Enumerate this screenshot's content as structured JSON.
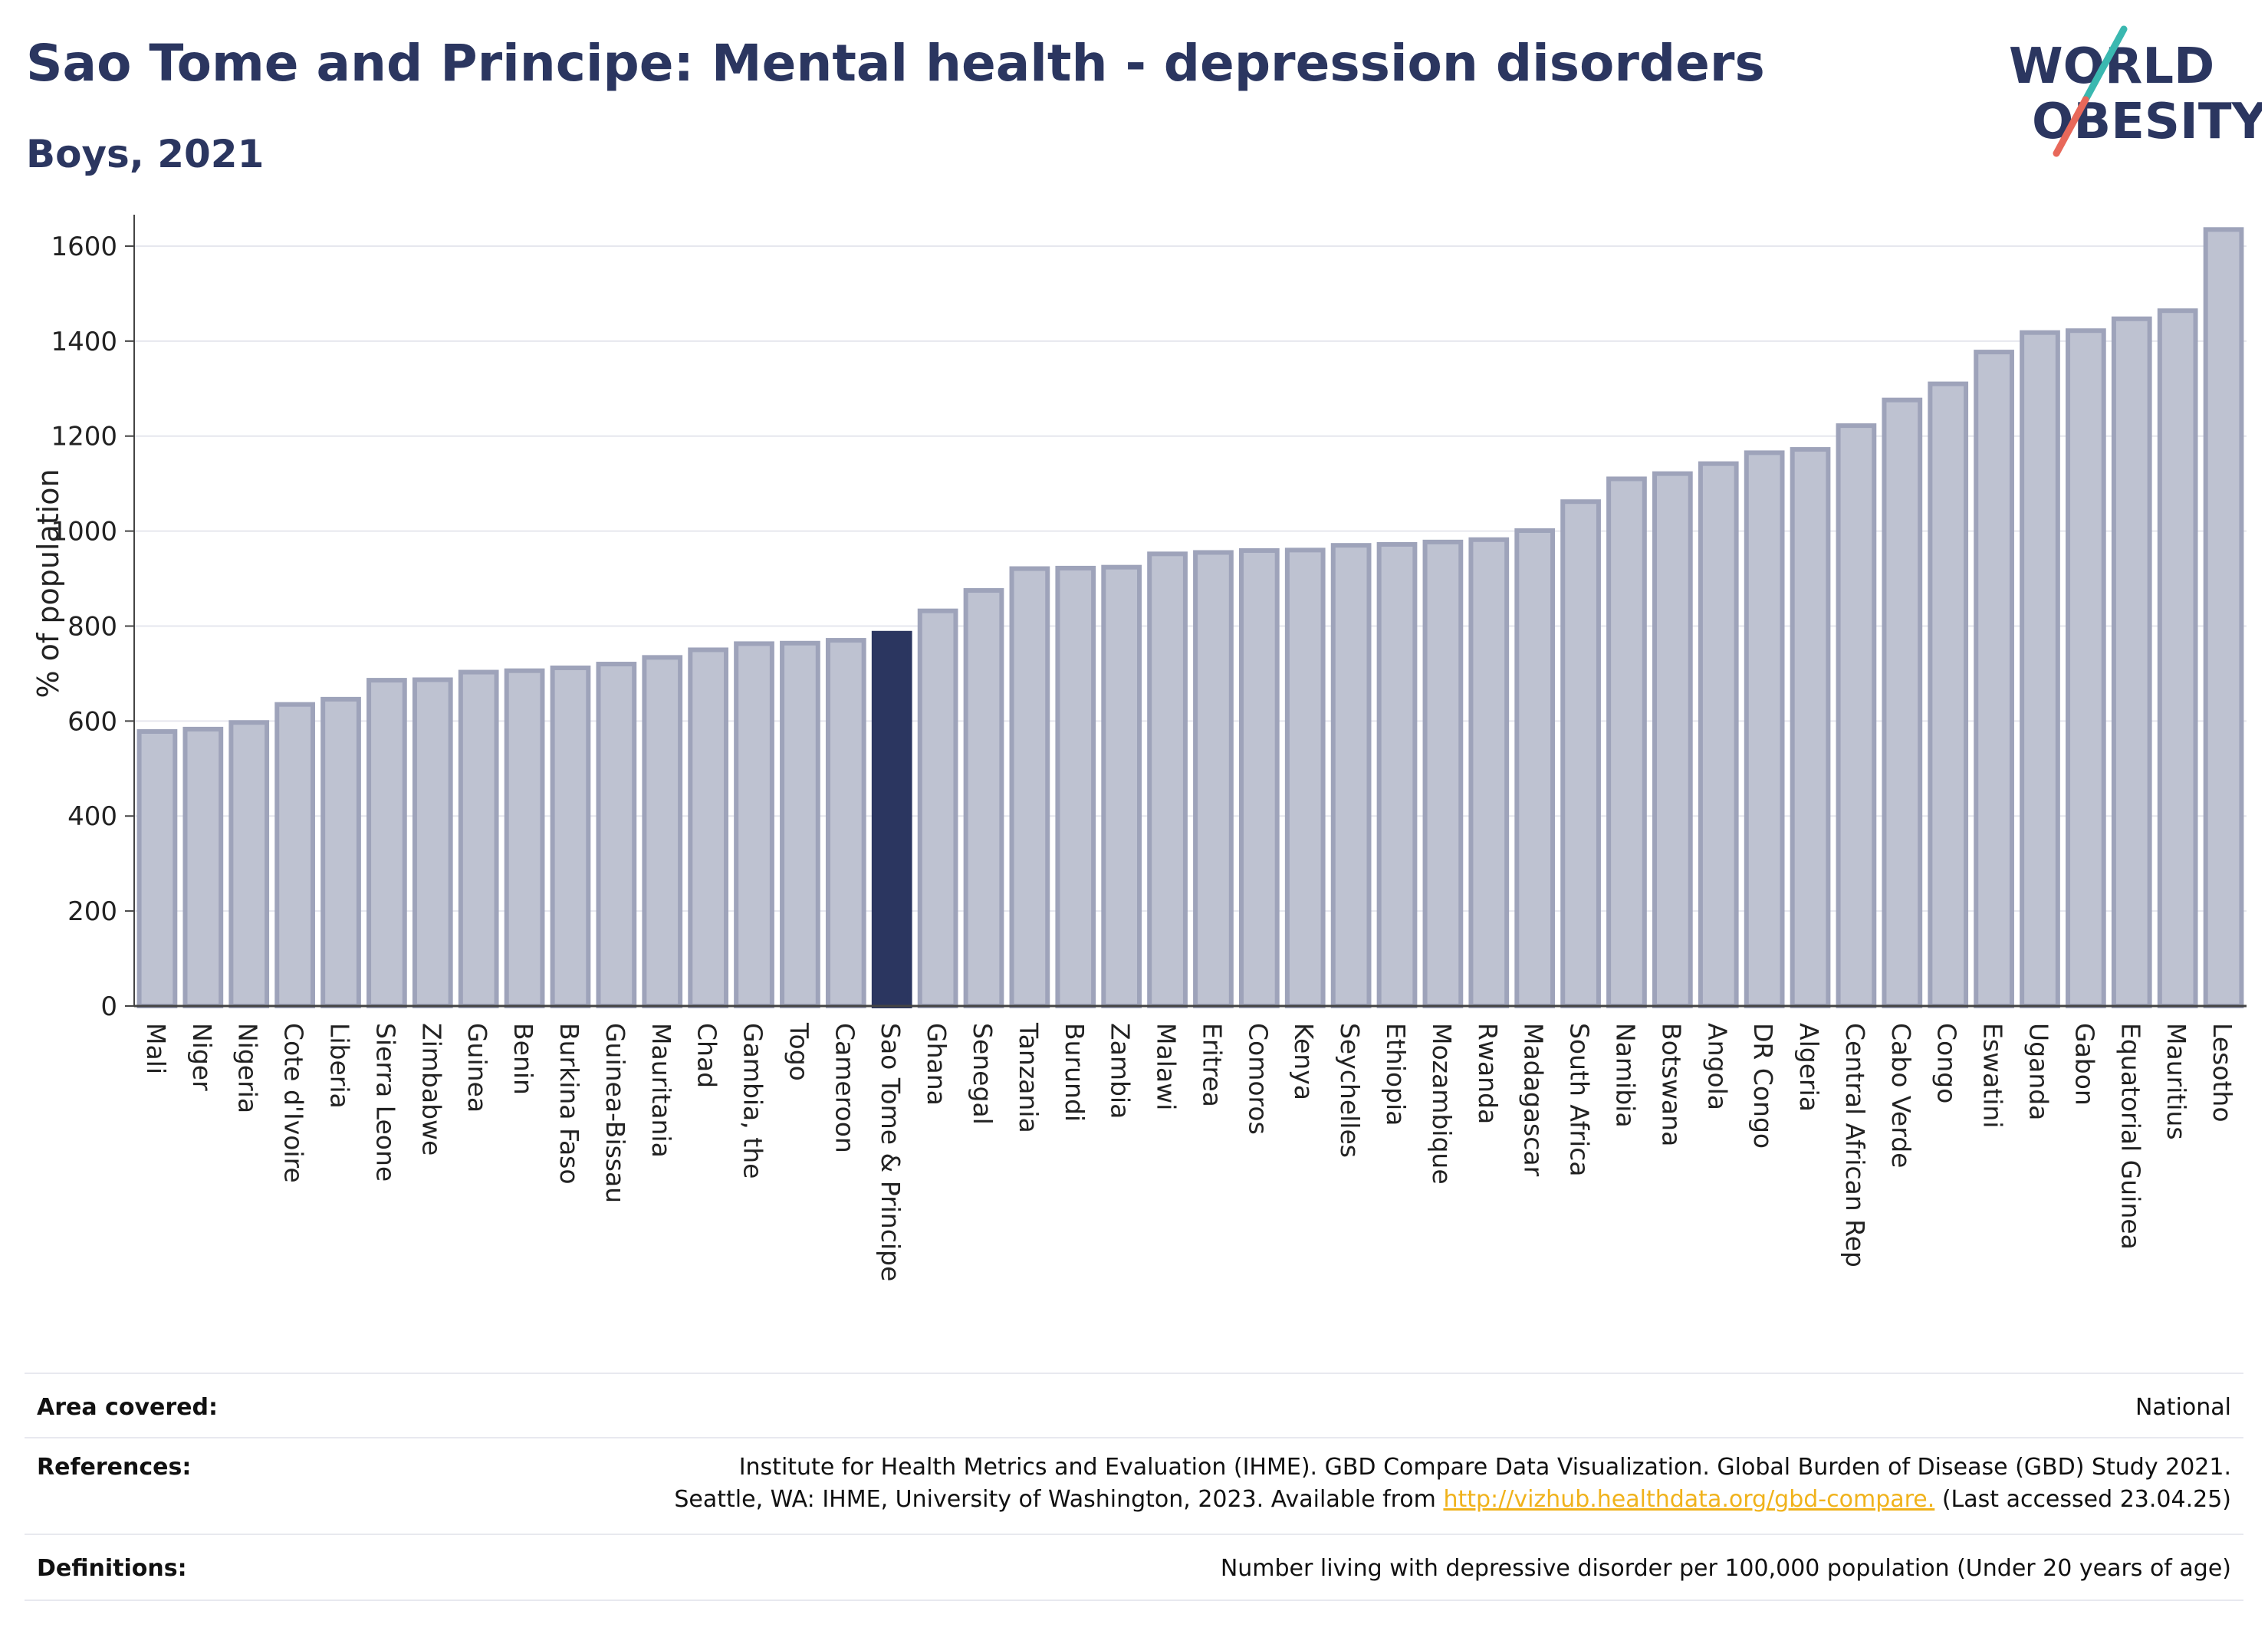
{
  "header": {
    "title": "Sao Tome and Principe: Mental health - depression disorders",
    "subtitle": "Boys, 2021"
  },
  "logo": {
    "line1": "WORLD",
    "line2": "OBESITY",
    "colors": {
      "text": "#2b3660",
      "slash_top": "#3ab8b0",
      "slash_bottom": "#e8685a"
    }
  },
  "chart_data": {
    "type": "bar",
    "ylabel": "% of population",
    "xlabel": "",
    "ylim": [
      0,
      1650
    ],
    "yticks": [
      0,
      200,
      400,
      600,
      800,
      1000,
      1200,
      1400,
      1600
    ],
    "grid": true,
    "highlight": "Sao Tome & Principe",
    "colors": {
      "bar": "#bec2d1",
      "bar_edge": "#9ea3ba",
      "highlight": "#2b3660"
    },
    "categories": [
      "Mali",
      "Niger",
      "Nigeria",
      "Cote d'Ivoire",
      "Liberia",
      "Sierra Leone",
      "Zimbabwe",
      "Guinea",
      "Benin",
      "Burkina Faso",
      "Guinea-Bissau",
      "Mauritania",
      "Chad",
      "Gambia, the",
      "Togo",
      "Cameroon",
      "Sao Tome & Principe",
      "Ghana",
      "Senegal",
      "Tanzania",
      "Burundi",
      "Zambia",
      "Malawi",
      "Eritrea",
      "Comoros",
      "Kenya",
      "Seychelles",
      "Ethiopia",
      "Mozambique",
      "Rwanda",
      "Madagascar",
      "South Africa",
      "Namibia",
      "Botswana",
      "Angola",
      "DR Congo",
      "Algeria",
      "Central African Rep",
      "Cabo Verde",
      "Congo",
      "Eswatini",
      "Uganda",
      "Gabon",
      "Equatorial Guinea",
      "Mauritius",
      "Lesotho"
    ],
    "values": [
      578,
      583,
      597,
      635,
      646,
      686,
      687,
      703,
      706,
      712,
      720,
      734,
      750,
      763,
      764,
      770,
      785,
      832,
      875,
      921,
      922,
      924,
      952,
      955,
      959,
      960,
      970,
      972,
      977,
      982,
      1001,
      1062,
      1110,
      1121,
      1142,
      1165,
      1172,
      1222,
      1276,
      1310,
      1377,
      1418,
      1422,
      1447,
      1464,
      1635
    ]
  },
  "info": {
    "area_label": "Area covered:",
    "area_value": "National",
    "references_label": "References:",
    "references_line1": "Institute for Health Metrics and Evaluation (IHME). GBD Compare Data Visualization. Global Burden of Disease (GBD) Study 2021.",
    "references_line2_pre": "Seattle, WA: IHME, University of Washington, 2023. Available from ",
    "references_link": "http://vizhub.healthdata.org/gbd-compare.",
    "references_line2_post": " (Last accessed 23.04.25)",
    "definitions_label": "Definitions:",
    "definitions_value": "Number living with depressive disorder per 100,000 population (Under 20 years of age)"
  }
}
